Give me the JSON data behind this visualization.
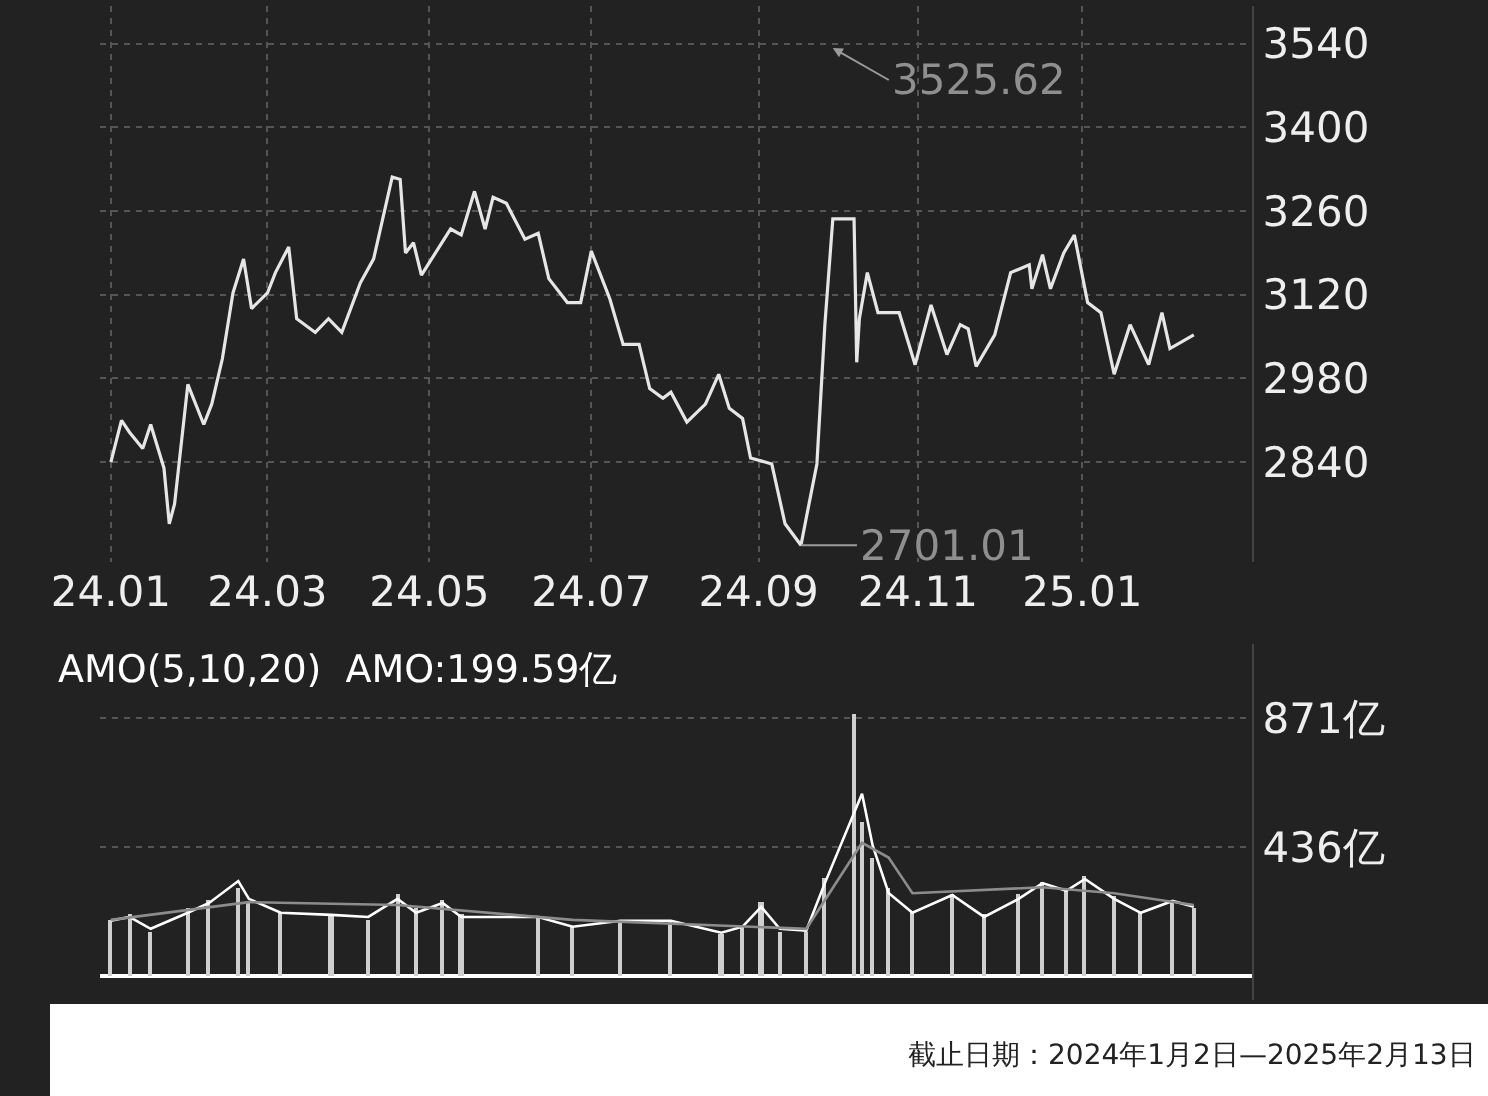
{
  "chart_data": [
    {
      "type": "line",
      "x": [
        "2024-01-02",
        "2024-01-06",
        "2024-01-09",
        "2024-01-14",
        "2024-01-17",
        "2024-01-22",
        "2024-01-24",
        "2024-01-26",
        "2024-01-31",
        "2024-02-06",
        "2024-02-09",
        "2024-02-13",
        "2024-02-17",
        "2024-02-21",
        "2024-02-24",
        "2024-03-01",
        "2024-03-04",
        "2024-03-09",
        "2024-03-12",
        "2024-03-19",
        "2024-03-24",
        "2024-03-29",
        "2024-04-05",
        "2024-04-10",
        "2024-04-17",
        "2024-04-20",
        "2024-04-22",
        "2024-04-25",
        "2024-04-28",
        "2024-05-09",
        "2024-05-13",
        "2024-05-18",
        "2024-05-22",
        "2024-05-25",
        "2024-05-30",
        "2024-06-06",
        "2024-06-11",
        "2024-06-15",
        "2024-06-22",
        "2024-06-27",
        "2024-07-01",
        "2024-07-08",
        "2024-07-13",
        "2024-07-19",
        "2024-07-23",
        "2024-07-28",
        "2024-07-31",
        "2024-08-06",
        "2024-08-13",
        "2024-08-18",
        "2024-08-22",
        "2024-08-27",
        "2024-08-30",
        "2024-09-07",
        "2024-09-12",
        "2024-09-18",
        "2024-09-20",
        "2024-09-24",
        "2024-09-27",
        "2024-09-30",
        "2024-10-08",
        "2024-10-09",
        "2024-10-10",
        "2024-10-13",
        "2024-10-17",
        "2024-10-25",
        "2024-10-31",
        "2024-11-06",
        "2024-11-12",
        "2024-11-17",
        "2024-11-20",
        "2024-11-23",
        "2024-11-30",
        "2024-12-06",
        "2024-12-13",
        "2024-12-14",
        "2024-12-18",
        "2024-12-21",
        "2024-12-26",
        "2024-12-30",
        "2025-01-04",
        "2025-01-09",
        "2025-01-14",
        "2025-01-20",
        "2025-01-27",
        "2025-02-01",
        "2025-02-04",
        "2025-02-13"
      ],
      "series": [
        {
          "color": "#e6e6e6",
          "values": [
            2840,
            2910,
            2890,
            2863,
            2903,
            2830,
            2737,
            2770,
            2970,
            2903,
            2937,
            3013,
            3123,
            3180,
            3097,
            3123,
            3157,
            3200,
            3080,
            3057,
            3080,
            3057,
            3140,
            3180,
            3317,
            3313,
            3190,
            3207,
            3153,
            3230,
            3220,
            3293,
            3230,
            3283,
            3273,
            3213,
            3223,
            3147,
            3107,
            3107,
            3193,
            3113,
            3037,
            3037,
            2963,
            2947,
            2957,
            2907,
            2937,
            2987,
            2930,
            2913,
            2847,
            2837,
            2737,
            2701,
            2747,
            2837,
            3070,
            3247,
            3247,
            3007,
            3080,
            3157,
            3090,
            3090,
            3003,
            3103,
            3020,
            3070,
            3063,
            3000,
            3053,
            3157,
            3170,
            3130,
            3187,
            3130,
            3190,
            3220,
            3107,
            3090,
            2987,
            3070,
            3003,
            3090,
            3030,
            3053
          ]
        }
      ],
      "xlim": [
        "2023-12-29",
        "2025-03-07"
      ],
      "xticks": [
        {
          "value": "2024-01-02",
          "label": "24.01"
        },
        {
          "value": "2024-03-01",
          "label": "24.03"
        },
        {
          "value": "2024-05-01",
          "label": "24.05"
        },
        {
          "value": "2024-07-01",
          "label": "24.07"
        },
        {
          "value": "2024-09-02",
          "label": "24.09"
        },
        {
          "value": "2024-11-01",
          "label": "24.11"
        },
        {
          "value": "2025-01-02",
          "label": "25.01"
        }
      ],
      "ylim": [
        2673,
        3603
      ],
      "yticks": [
        2840,
        2980,
        3120,
        3260,
        3400,
        3540
      ],
      "grid": true,
      "annotations": [
        "3525.62",
        {
          "text": "2701.01",
          "x": "2024-09-18",
          "y": 2701.01
        }
      ]
    },
    {
      "type": "bar",
      "title": "AMO(5,10,20)  AMO:199.59亿",
      "x": [
        "2024-01-02",
        "2024-01-09",
        "2024-01-17",
        "2024-01-31",
        "2024-02-08",
        "2024-02-19",
        "2024-02-23",
        "2024-03-06",
        "2024-03-25",
        "2024-04-08",
        "2024-04-19",
        "2024-04-26",
        "2024-05-06",
        "2024-05-13",
        "2024-06-11",
        "2024-06-24",
        "2024-07-12",
        "2024-07-31",
        "2024-08-19",
        "2024-08-27",
        "2024-09-03",
        "2024-09-10",
        "2024-09-20",
        "2024-09-27",
        "2024-10-08",
        "2024-10-11",
        "2024-10-15",
        "2024-10-21",
        "2024-10-30",
        "2024-11-14",
        "2024-11-26",
        "2024-12-09",
        "2024-12-18",
        "2024-12-27",
        "2025-01-03",
        "2025-01-14",
        "2025-01-24",
        "2025-02-05",
        "2025-02-13"
      ],
      "series": [
        {
          "type": "bar",
          "color": "#cfcfcf",
          "values": [
            190,
            210,
            150,
            230,
            260,
            300,
            250,
            220,
            200,
            190,
            280,
            230,
            260,
            210,
            200,
            170,
            190,
            180,
            140,
            170,
            250,
            150,
            150,
            330,
            884,
            520,
            400,
            300,
            220,
            280,
            210,
            280,
            320,
            290,
            340,
            270,
            220,
            260,
            230
          ]
        },
        {
          "type": "line",
          "color": "#ffffff",
          "x": [
            "2024-01-02",
            "2024-01-09",
            "2024-01-17",
            "2024-01-31",
            "2024-02-08",
            "2024-02-19",
            "2024-02-23",
            "2024-03-06",
            "2024-03-25",
            "2024-04-08",
            "2024-04-19",
            "2024-04-26",
            "2024-05-06",
            "2024-05-13",
            "2024-06-11",
            "2024-06-24",
            "2024-07-12",
            "2024-07-31",
            "2024-08-19",
            "2024-08-27",
            "2024-09-03",
            "2024-09-10",
            "2024-09-20",
            "2024-09-27",
            "2024-10-11",
            "2024-10-15",
            "2024-10-21",
            "2024-10-30",
            "2024-11-14",
            "2024-11-26",
            "2024-12-09",
            "2024-12-18",
            "2024-12-27",
            "2025-01-03",
            "2025-01-14",
            "2025-01-24",
            "2025-02-05",
            "2025-02-13"
          ],
          "values": [
            187,
            200,
            160,
            214,
            247,
            321,
            261,
            214,
            207,
            200,
            261,
            214,
            247,
            200,
            200,
            167,
            187,
            187,
            147,
            167,
            234,
            160,
            154,
            314,
            615,
            441,
            281,
            214,
            274,
            200,
            261,
            314,
            288,
            328,
            261,
            214,
            254,
            234
          ]
        },
        {
          "type": "line",
          "color": "#8c8c8c",
          "x": [
            "2024-01-02",
            "2024-02-23",
            "2024-04-19",
            "2024-06-24",
            "2024-09-20",
            "2024-10-11",
            "2024-10-21",
            "2024-10-30",
            "2024-12-18",
            "2025-01-14",
            "2025-02-13"
          ],
          "values": [
            190,
            250,
            240,
            190,
            160,
            450,
            400,
            280,
            300,
            280,
            240
          ]
        }
      ],
      "xlim": [
        "2023-12-29",
        "2025-03-07"
      ],
      "ylim": [
        -80,
        1120
      ],
      "yticks": [
        {
          "value": 436,
          "label": "436亿"
        },
        {
          "value": 871,
          "label": "871亿"
        }
      ],
      "grid": true,
      "tick_labels": "y",
      "annotations": [
        "截止日期：2024年1月2日—2025年2月13日"
      ]
    }
  ]
}
